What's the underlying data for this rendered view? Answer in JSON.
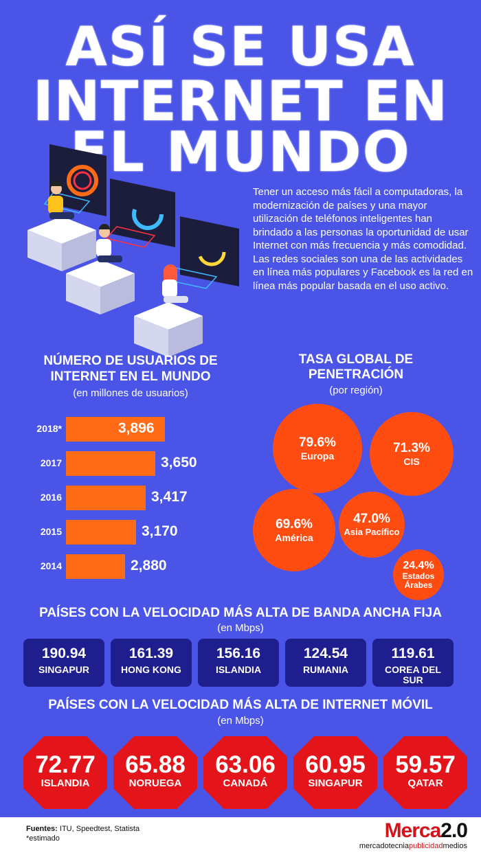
{
  "header": {
    "line1": "ASÍ SE USA",
    "line2": "INTERNET EN",
    "line3": "EL MUNDO"
  },
  "intro": "Tener un acceso más fácil a computadoras, la modernización de países y una mayor utilización de teléfonos inteligentes han brindado a las personas la oportunidad de usar Internet con más frecuencia y más comodidad. Las redes sociales son una de las actividades en línea más populares y Facebook es la red en línea más popular basada en el uso activo.",
  "users": {
    "title_line1": "NÚMERO DE USUARIOS DE",
    "title_line2": "INTERNET EN EL MUNDO",
    "subtitle": "(en millones de usuarios)"
  },
  "penetration": {
    "title_line1": "TASA GLOBAL DE",
    "title_line2": "PENETRACIÓN",
    "subtitle": "(por región)",
    "regions": [
      {
        "pct": "79.6%",
        "name": "Europa"
      },
      {
        "pct": "71.3%",
        "name": "CIS"
      },
      {
        "pct": "69.6%",
        "name": "América"
      },
      {
        "pct": "47.0%",
        "name": "Asia Pacífico"
      },
      {
        "pct": "24.4%",
        "name": "Estados Árabes"
      }
    ]
  },
  "broadband": {
    "title": "PAÍSES CON LA VELOCIDAD MÁS ALTA DE BANDA ANCHA FIJA",
    "subtitle": "(en Mbps)",
    "items": [
      {
        "value": "190.94",
        "country": "SINGAPUR"
      },
      {
        "value": "161.39",
        "country": "HONG KONG"
      },
      {
        "value": "156.16",
        "country": "ISLANDIA"
      },
      {
        "value": "124.54",
        "country": "RUMANIA"
      },
      {
        "value": "119.61",
        "country": "COREA DEL SUR"
      }
    ]
  },
  "mobile": {
    "title": "PAÍSES CON LA VELOCIDAD MÁS ALTA DE INTERNET MÓVIL",
    "subtitle": "(en Mbps)",
    "items": [
      {
        "value": "72.77",
        "country": "ISLANDIA"
      },
      {
        "value": "65.88",
        "country": "NORUEGA"
      },
      {
        "value": "63.06",
        "country": "CANADÁ"
      },
      {
        "value": "60.95",
        "country": "SINGAPUR"
      },
      {
        "value": "59.57",
        "country": "QATAR"
      }
    ]
  },
  "footer": {
    "sources_label": "Fuentes:",
    "sources": "ITU, Speedtest, Statista",
    "note": "*estimado",
    "logo_main": "Merca",
    "logo_version": "2.0",
    "logo_tag1": "mercadotecnia",
    "logo_tag2": "publicidad",
    "logo_tag3": "medios"
  },
  "colors": {
    "background": "#4a55e8",
    "bar": "#ff6b17",
    "circle": "#ff4d12",
    "box": "#1e1e8e",
    "octagon": "#e4141b"
  },
  "chart_data": {
    "type": "bar",
    "orientation": "horizontal",
    "categories": [
      "2018*",
      "2017",
      "2016",
      "2015",
      "2014"
    ],
    "values": [
      3896,
      3650,
      3417,
      3170,
      2880
    ],
    "labels": [
      "3,896",
      "3,650",
      "3,417",
      "3,170",
      "2,880"
    ],
    "xlim": [
      0,
      4000
    ]
  }
}
